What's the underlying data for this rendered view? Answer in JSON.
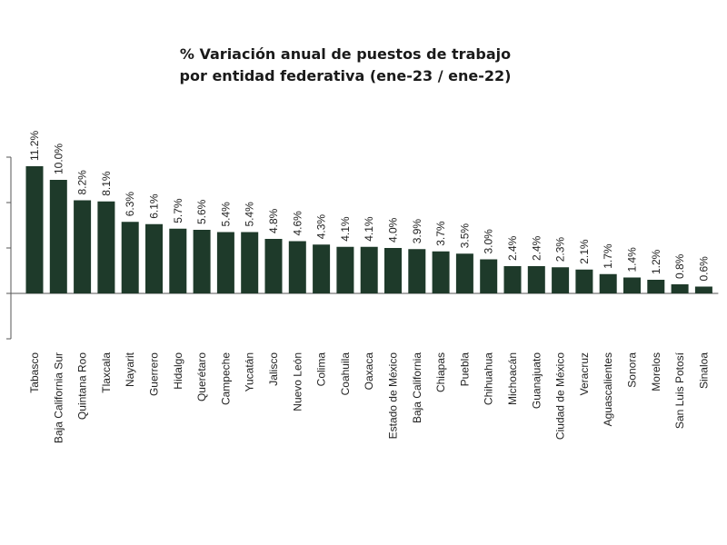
{
  "chart_data": {
    "type": "bar",
    "title": [
      "% Variación anual de puestos de trabajo",
      "por entidad federativa (ene-23 / ene-22)"
    ],
    "xlabel": "",
    "ylabel": "",
    "categories": [
      "Tabasco",
      "Baja California Sur",
      "Quintana Roo",
      "Tlaxcala",
      "Nayarit",
      "Guerrero",
      "Hidalgo",
      "Querétaro",
      "Campeche",
      "Yucatán",
      "Jalisco",
      "Nuevo León",
      "Colima",
      "Coahuila",
      "Oaxaca",
      "Estado de México",
      "Baja California",
      "Chiapas",
      "Puebla",
      "Chihuahua",
      "Michoacán",
      "Guanajuato",
      "Ciudad de México",
      "Veracruz",
      "Aguascalientes",
      "Sonora",
      "Morelos",
      "San Luis Potosí",
      "Sinaloa"
    ],
    "values": [
      11.2,
      10.0,
      8.2,
      8.1,
      6.3,
      6.1,
      5.7,
      5.6,
      5.4,
      5.4,
      4.8,
      4.6,
      4.3,
      4.1,
      4.1,
      4.0,
      3.9,
      3.7,
      3.5,
      3.0,
      2.4,
      2.4,
      2.3,
      2.1,
      1.7,
      1.4,
      1.2,
      0.8,
      0.6
    ],
    "labels": [
      "11.2%",
      "10.0%",
      "8.2%",
      "8.1%",
      "6.3%",
      "6.1%",
      "5.7%",
      "5.6%",
      "5.4%",
      "5.4%",
      "4.8%",
      "4.6%",
      "4.3%",
      "4.1%",
      "4.1%",
      "4.0%",
      "3.9%",
      "3.7%",
      "3.5%",
      "3.0%",
      "2.4%",
      "2.4%",
      "2.3%",
      "2.1%",
      "1.7%",
      "1.4%",
      "1.2%",
      "0.8%",
      "0.6%"
    ],
    "ylim": [
      -4,
      12
    ],
    "bar_color": "#1e3a2a",
    "grid": false,
    "legend": "none"
  }
}
